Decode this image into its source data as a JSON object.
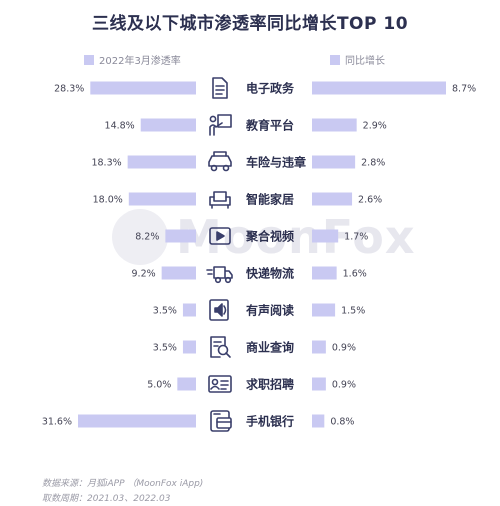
{
  "title": "三线及以下城市渗透率同比增长TOP 10",
  "legend": {
    "left": "2022年3月渗透率",
    "right": "同比增长"
  },
  "watermark": "MoonFox",
  "footer": {
    "source": "数据来源：月狐iAPP （MoonFox iApp)",
    "period": "取数周期：2021.03、2022.03"
  },
  "colors": {
    "bar": "#c9c9f2",
    "icon": "#3a3f6b",
    "title": "#2c3050"
  },
  "chart_data": {
    "type": "bar",
    "categories": [
      "电子政务",
      "教育平台",
      "车险与违章",
      "智能家居",
      "聚合视频",
      "快递物流",
      "有声阅读",
      "商业查询",
      "求职招聘",
      "手机银行"
    ],
    "icons": [
      "document-icon",
      "teacher-board-icon",
      "car-icon",
      "sofa-icon",
      "video-play-icon",
      "delivery-truck-icon",
      "audiobook-speaker-icon",
      "business-search-icon",
      "resume-card-icon",
      "bank-card-icon"
    ],
    "series": [
      {
        "name": "2022年3月渗透率",
        "values": [
          28.3,
          14.8,
          18.3,
          18.0,
          8.2,
          9.2,
          3.5,
          3.5,
          5.0,
          31.6
        ],
        "labels": [
          "28.3%",
          "14.8%",
          "18.3%",
          "18.0%",
          "8.2%",
          "9.2%",
          "3.5%",
          "3.5%",
          "5.0%",
          "31.6%"
        ]
      },
      {
        "name": "同比增长",
        "values": [
          8.7,
          2.9,
          2.8,
          2.6,
          1.7,
          1.6,
          1.5,
          0.9,
          0.9,
          0.8
        ],
        "labels": [
          "8.7%",
          "2.9%",
          "2.8%",
          "2.6%",
          "1.7%",
          "1.6%",
          "1.5%",
          "0.9%",
          "0.9%",
          "0.8%"
        ]
      }
    ]
  }
}
